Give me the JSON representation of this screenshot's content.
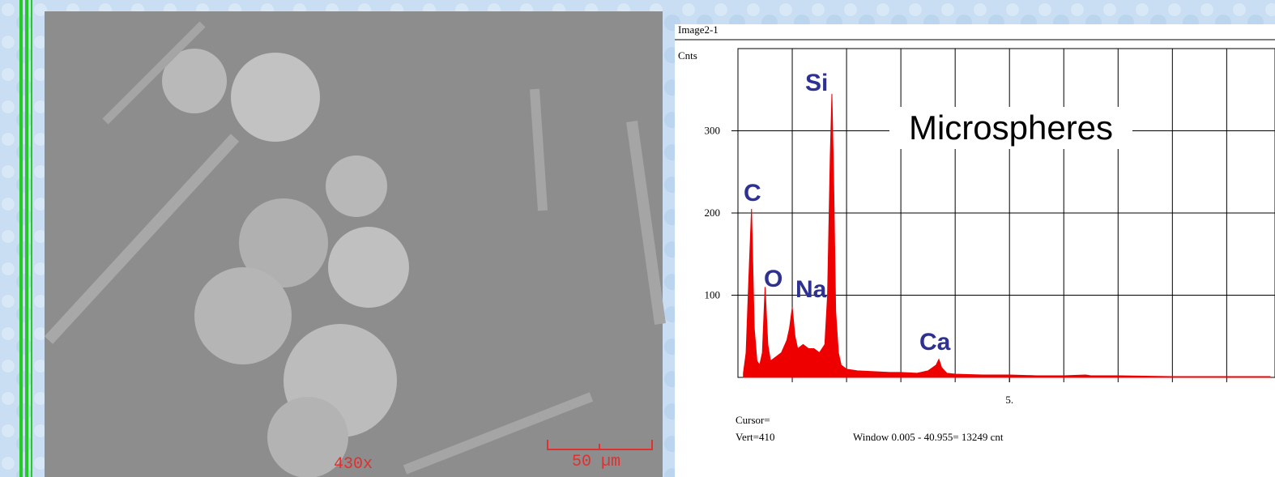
{
  "sem_image": {
    "magnification": "430x",
    "scale_bar": "50 µm"
  },
  "chart_data": {
    "type": "area",
    "title": "Image2-1",
    "ylabel": "Cnts",
    "color": "#ee0000",
    "x": [
      0.1,
      0.15,
      0.2,
      0.25,
      0.3,
      0.35,
      0.4,
      0.45,
      0.5,
      0.55,
      0.6,
      0.7,
      0.8,
      0.9,
      0.95,
      1.0,
      1.05,
      1.1,
      1.2,
      1.3,
      1.4,
      1.5,
      1.6,
      1.65,
      1.7,
      1.73,
      1.76,
      1.8,
      1.85,
      1.9,
      2.0,
      2.2,
      2.5,
      2.8,
      3.0,
      3.3,
      3.5,
      3.65,
      3.7,
      3.75,
      3.85,
      4.0,
      4.5,
      5.0,
      5.5,
      6.0,
      6.4,
      6.5,
      7.0,
      8.0,
      9.0,
      9.8
    ],
    "values": [
      5,
      30,
      120,
      205,
      60,
      20,
      15,
      30,
      110,
      40,
      20,
      25,
      30,
      45,
      60,
      85,
      50,
      35,
      40,
      35,
      35,
      30,
      40,
      100,
      270,
      345,
      250,
      80,
      30,
      15,
      10,
      8,
      7,
      6,
      6,
      5,
      8,
      15,
      22,
      12,
      5,
      4,
      3,
      3,
      2,
      2,
      3,
      2,
      2,
      1,
      1,
      1
    ],
    "xlim": [
      0,
      9.8
    ],
    "ylim": [
      0,
      400
    ],
    "xticks": [
      {
        "value": 5,
        "label": "5."
      }
    ],
    "yticks": [
      100,
      200,
      300
    ],
    "xgrid": [
      1,
      2,
      3,
      4,
      5,
      6,
      7,
      8,
      9
    ],
    "annotations": [
      "Microspheres",
      "C",
      "O",
      "Na",
      "Si",
      "Ca"
    ],
    "cursor_text": [
      "Cursor=",
      "Vert=410",
      "Window 0.005 - 40.955=  13249 cnt"
    ]
  }
}
